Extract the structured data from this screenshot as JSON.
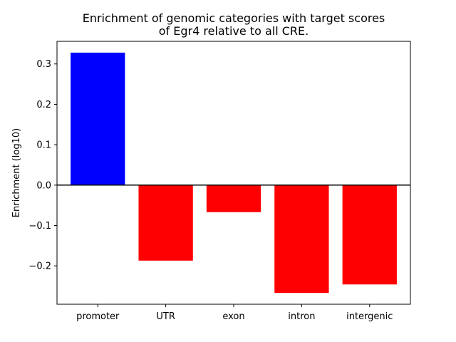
{
  "chart_data": {
    "type": "bar",
    "title_lines": [
      "Enrichment of genomic categories with target scores",
      "of Egr4 relative to all CRE."
    ],
    "xlabel": "",
    "ylabel": "Enrichment (log10)",
    "categories": [
      "promoter",
      "UTR",
      "exon",
      "intron",
      "intergenic"
    ],
    "values": [
      0.328,
      -0.187,
      -0.067,
      -0.267,
      -0.246
    ],
    "colors": {
      "positive": "#0000ff",
      "negative": "#ff0000"
    },
    "ylim": [
      -0.295,
      0.356
    ],
    "yticks": [
      -0.2,
      -0.1,
      0.0,
      0.1,
      0.2,
      0.3
    ],
    "ytick_labels": [
      "−0.2",
      "−0.1",
      "0.0",
      "0.1",
      "0.2",
      "0.3"
    ],
    "zero_line": true,
    "grid": false
  }
}
